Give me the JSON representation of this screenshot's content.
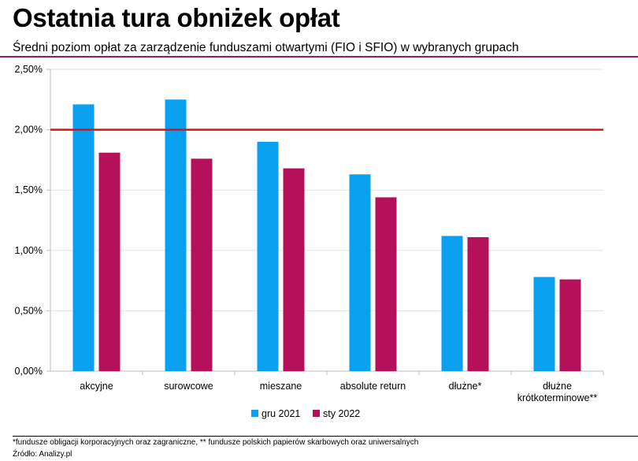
{
  "header": {
    "title": "Ostatnia tura obniżek opłat",
    "subtitle": "Średni poziom opłat za zarządzenie funduszami otwartymi (FIO i SFIO) w wybranych grupach"
  },
  "footer": {
    "footnote": "*fundusze obligacji korporacyjnych oraz zagraniczne, ** fundusze polskich papierów skarbowych oraz uniwersalnych",
    "source": "Źródło: Analizy.pl"
  },
  "chart_data": {
    "type": "bar",
    "categories": [
      [
        "akcyjne"
      ],
      [
        "surowcowe"
      ],
      [
        "mieszane"
      ],
      [
        "absolute return"
      ],
      [
        "dłużne*"
      ],
      [
        "dłużne",
        "krótkoterminowe**"
      ]
    ],
    "series": [
      {
        "name": "gru 2021",
        "color": "#0aa0f0",
        "values": [
          2.21,
          2.25,
          1.9,
          1.63,
          1.12,
          0.78
        ]
      },
      {
        "name": "sty 2022",
        "color": "#b5105a",
        "values": [
          1.81,
          1.76,
          1.68,
          1.44,
          1.11,
          0.76
        ]
      }
    ],
    "ylim": [
      0,
      2.5
    ],
    "yticks": [
      0,
      0.5,
      1.0,
      1.5,
      2.0,
      2.5
    ],
    "ytick_labels": [
      "0,00%",
      "0,50%",
      "1,00%",
      "1,50%",
      "2,00%",
      "2,50%"
    ],
    "reference_line": {
      "value": 2.0,
      "color": "#e01010"
    },
    "grid": true,
    "legend_position": "bottom-center"
  }
}
